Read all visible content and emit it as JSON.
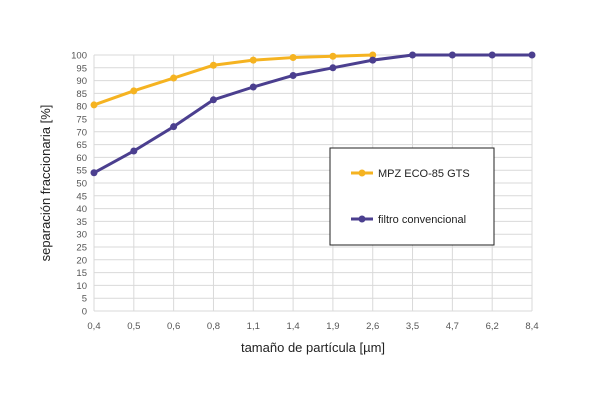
{
  "chart_data": {
    "type": "line",
    "categories": [
      "0,4",
      "0,5",
      "0,6",
      "0,8",
      "1,1",
      "1,4",
      "1,9",
      "2,6",
      "3,5",
      "4,7",
      "6,2",
      "8,4"
    ],
    "xlabel": "tamaño de partícula [µm]",
    "ylabel": "separación fraccionaria [%]",
    "ylim": [
      0,
      100
    ],
    "yticks": [
      0,
      5,
      10,
      15,
      20,
      25,
      30,
      35,
      40,
      45,
      50,
      55,
      60,
      65,
      70,
      75,
      80,
      85,
      90,
      95,
      100
    ],
    "grid": true,
    "legend_position": "right",
    "series": [
      {
        "name": "MPZ ECO-85 GTS",
        "color": "#F5B321",
        "values": [
          80.5,
          86,
          91,
          96,
          98,
          99,
          99.5,
          100,
          null,
          null,
          null,
          null
        ]
      },
      {
        "name": "filtro convencional",
        "color": "#4B3F8F",
        "values": [
          54,
          62.5,
          72,
          82.5,
          87.5,
          92,
          95,
          98,
          100,
          100,
          100,
          100
        ]
      }
    ]
  }
}
